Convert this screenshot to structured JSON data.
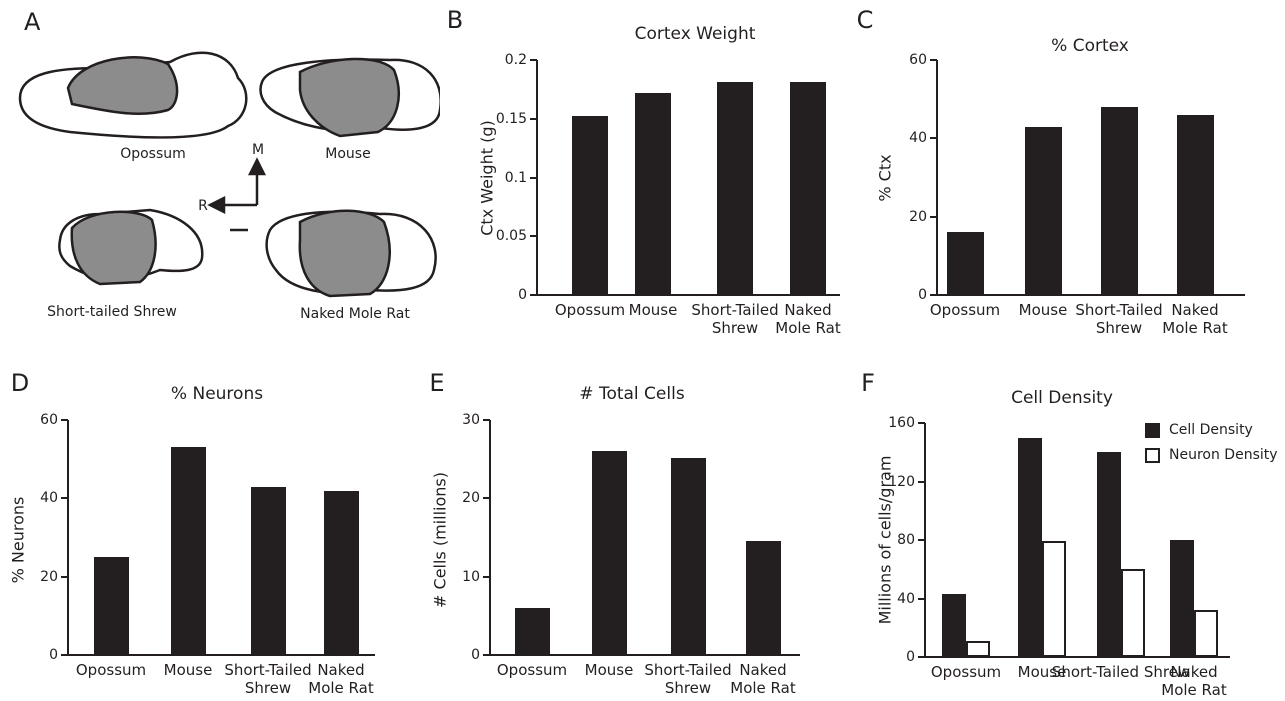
{
  "diagram": {
    "panel": "A",
    "brains": [
      "Opossum",
      "Mouse",
      "Short-tailed Shrew",
      "Naked Mole Rat"
    ],
    "axis_labels": [
      "M",
      "R"
    ]
  },
  "chart_data": [
    {
      "type": "bar",
      "panel": "B",
      "title": "Cortex Weight",
      "y_label": "Ctx Weight (g)",
      "categories": [
        "Opossum",
        "Mouse",
        "Short-Tailed\nShrew",
        "Naked\nMole Rat"
      ],
      "values": [
        0.152,
        0.172,
        0.181,
        0.181
      ],
      "color": "#231f20",
      "ylim": [
        0,
        0.2
      ],
      "yticks": [
        0,
        0.05,
        0.1,
        0.15,
        0.2
      ]
    },
    {
      "type": "bar",
      "panel": "C",
      "title": "% Cortex",
      "y_label": "% Ctx",
      "categories": [
        "Opossum",
        "Mouse",
        "Short-Tailed\nShrew",
        "Naked\nMole Rat"
      ],
      "values": [
        16,
        43,
        48,
        46
      ],
      "color": "#231f20",
      "ylim": [
        0,
        60
      ],
      "yticks": [
        0,
        20,
        40,
        60
      ]
    },
    {
      "type": "bar",
      "panel": "D",
      "title": "% Neurons",
      "y_label": "% Neurons",
      "categories": [
        "Opossum",
        "Mouse",
        "Short-Tailed\nShrew",
        "Naked\nMole Rat"
      ],
      "values": [
        25,
        53,
        43,
        42
      ],
      "color": "#231f20",
      "ylim": [
        0,
        60
      ],
      "yticks": [
        0,
        20,
        40,
        60
      ]
    },
    {
      "type": "bar",
      "panel": "E",
      "title": "# Total Cells",
      "y_label": "# Cells (millions)",
      "categories": [
        "Opossum",
        "Mouse",
        "Short-Tailed\nShrew",
        "Naked\nMole Rat"
      ],
      "values": [
        6,
        26,
        25.2,
        14.5
      ],
      "color": "#231f20",
      "ylim": [
        0,
        30
      ],
      "yticks": [
        0,
        10,
        20,
        30
      ]
    },
    {
      "type": "grouped_bar",
      "panel": "F",
      "title": "Cell Density",
      "y_label": "Millions of cells/gram",
      "categories": [
        "Opossum",
        "Mouse",
        "Short-Tailed Shrew",
        "Naked\nMole Rat"
      ],
      "series": [
        {
          "name": "Cell Density",
          "color": "#231f20",
          "values": [
            43,
            150,
            140,
            80
          ]
        },
        {
          "name": "Neuron Density",
          "color": "#ffffff",
          "values": [
            11,
            79,
            60,
            32
          ]
        }
      ],
      "ylim": [
        0,
        160
      ],
      "yticks": [
        0,
        40,
        80,
        120,
        160
      ],
      "legend": "upper right"
    }
  ]
}
